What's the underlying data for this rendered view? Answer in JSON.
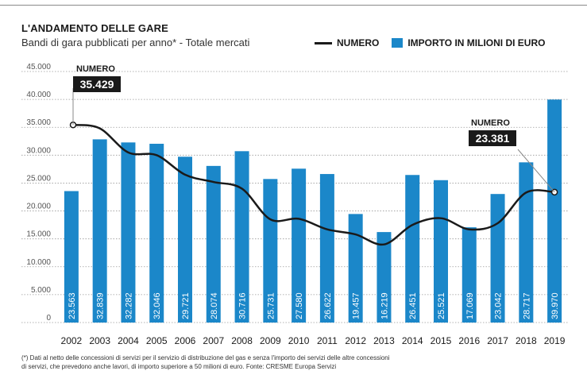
{
  "header": {
    "title": "L'ANDAMENTO DELLE GARE",
    "subtitle": "Bandi di gara pubblicati per anno* - Totale mercati"
  },
  "legend": {
    "line_label": "NUMERO",
    "bar_label": "IMPORTO IN MILIONI DI EURO"
  },
  "footnote": {
    "line1": "(*) Dati al netto delle concessioni di servizi per il servizio di distribuzione del gas e senza l'importo dei servizi delle altre concessioni",
    "line2": "di servizi, che prevedono anche lavori, di importo superiore a 50 milioni di euro. Fonte: CRESME Europa Servizi"
  },
  "callouts": {
    "start_label": "NUMERO",
    "start_value": "35.429",
    "end_label": "NUMERO",
    "end_value": "23.381"
  },
  "colors": {
    "bar": "#1b87c9",
    "line": "#1a1a1a",
    "grid": "#9a9a9a",
    "callout_bg": "#1a1a1a"
  },
  "chart_data": {
    "type": "bar",
    "categories": [
      "2002",
      "2003",
      "2004",
      "2005",
      "2006",
      "2007",
      "2008",
      "2009",
      "2010",
      "2011",
      "2012",
      "2013",
      "2014",
      "2015",
      "2016",
      "2017",
      "2018",
      "2019"
    ],
    "series": [
      {
        "name": "IMPORTO IN MILIONI DI EURO",
        "type": "bar",
        "values": [
          23563,
          32839,
          32282,
          32046,
          29721,
          28074,
          30716,
          25731,
          27580,
          26622,
          19457,
          16219,
          26451,
          25521,
          17069,
          23042,
          28717,
          39970
        ],
        "labels": [
          "23.563",
          "32.839",
          "32.282",
          "32.046",
          "29.721",
          "28.074",
          "30.716",
          "25.731",
          "27.580",
          "26.622",
          "19.457",
          "16.219",
          "26.451",
          "25.521",
          "17.069",
          "23.042",
          "28.717",
          "39.970"
        ]
      },
      {
        "name": "NUMERO",
        "type": "line",
        "values": [
          35429,
          34800,
          30500,
          30000,
          26500,
          25200,
          24000,
          18500,
          18600,
          16700,
          15800,
          14000,
          17500,
          18700,
          16700,
          17800,
          23300,
          23381
        ]
      }
    ],
    "y_ticks": [
      "0",
      "5.000",
      "10.000",
      "15.000",
      "20.000",
      "25.000",
      "30.000",
      "35.000",
      "40.000",
      "45.000"
    ],
    "ylim": [
      0,
      45000
    ],
    "grid": true,
    "legend_position": "top-right"
  }
}
